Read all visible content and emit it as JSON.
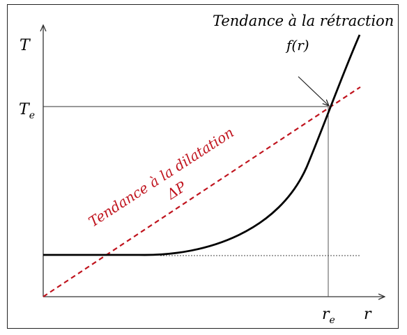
{
  "axes": {
    "y_label": "T",
    "x_label": "r",
    "y_tick_label": "T",
    "y_tick_sub": "e",
    "x_tick_label": "r",
    "x_tick_sub": "e"
  },
  "curves": {
    "retraction_title": "Tendance à la rétraction",
    "retraction_func": "f(r)",
    "dilatation_title": "Tendance à la dilatation",
    "dilatation_func": "ΔP"
  },
  "colors": {
    "curve": "#000000",
    "dilatation": "#c0141e",
    "axis": "#333333"
  }
}
